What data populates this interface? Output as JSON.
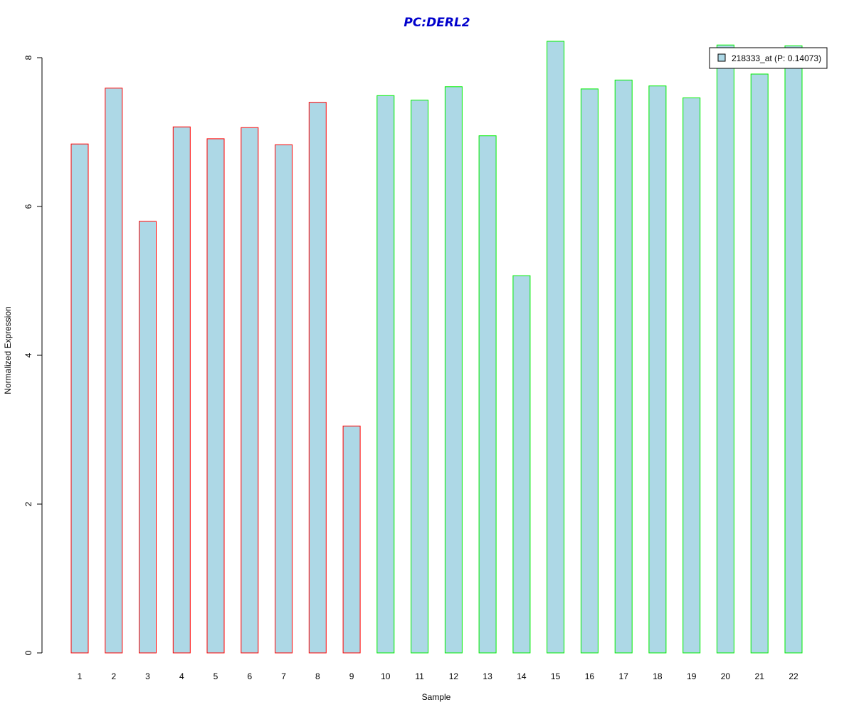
{
  "chart_data": {
    "type": "bar",
    "title": "PC:DERL2",
    "xlabel": "Sample",
    "ylabel": "Normalized Expression",
    "categories": [
      "1",
      "2",
      "3",
      "4",
      "5",
      "6",
      "7",
      "8",
      "9",
      "10",
      "11",
      "12",
      "13",
      "14",
      "15",
      "16",
      "17",
      "18",
      "19",
      "20",
      "21",
      "22"
    ],
    "series": [
      {
        "name": "218333_at (P: 0.14073)",
        "values": [
          6.84,
          7.59,
          5.8,
          7.07,
          6.91,
          7.06,
          6.83,
          7.4,
          3.05,
          7.49,
          7.43,
          7.61,
          6.95,
          5.07,
          8.22,
          7.58,
          7.7,
          7.62,
          7.46,
          8.17,
          7.78,
          8.16
        ],
        "group": [
          "a",
          "a",
          "a",
          "a",
          "a",
          "a",
          "a",
          "a",
          "a",
          "b",
          "b",
          "b",
          "b",
          "b",
          "b",
          "b",
          "b",
          "b",
          "b",
          "b",
          "b",
          "b"
        ]
      }
    ],
    "ylim": [
      0,
      8.2
    ],
    "yticks": [
      0,
      2,
      4,
      6,
      8
    ],
    "legend_position": "top-right",
    "grid": false,
    "colors": {
      "title": "#0000cc",
      "bar_fill": "#add8e6",
      "group_a_border": "#ff0000",
      "group_b_border": "#00ee00",
      "axis": "#000000"
    }
  }
}
